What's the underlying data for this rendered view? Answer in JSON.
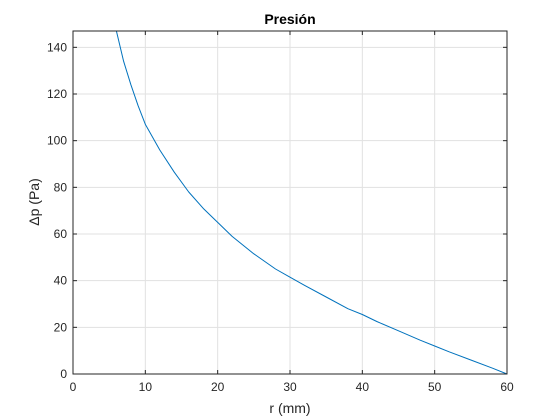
{
  "chart_data": {
    "type": "line",
    "title": "Presión",
    "xlabel": "r (mm)",
    "ylabel": "Δp (Pa)",
    "xlim": [
      0,
      60
    ],
    "ylim": [
      0,
      147
    ],
    "xticks": [
      0,
      10,
      20,
      30,
      40,
      50,
      60
    ],
    "yticks": [
      0,
      20,
      40,
      60,
      80,
      100,
      120,
      140
    ],
    "grid": true,
    "series": [
      {
        "color": "#0072bd",
        "x": [
          0,
          6,
          7,
          8,
          9,
          10,
          12,
          14,
          16,
          18,
          20,
          22,
          25,
          28,
          30,
          32,
          35,
          38,
          40,
          42,
          45,
          48,
          50,
          52,
          55,
          58,
          60
        ],
        "y": [
          147,
          147,
          134,
          124,
          115,
          107,
          96,
          86.5,
          78,
          71,
          65,
          59,
          51.5,
          45,
          41.5,
          38,
          33,
          28,
          25.5,
          22.5,
          18.5,
          14.5,
          12,
          9.5,
          6,
          2.5,
          0
        ]
      }
    ]
  }
}
